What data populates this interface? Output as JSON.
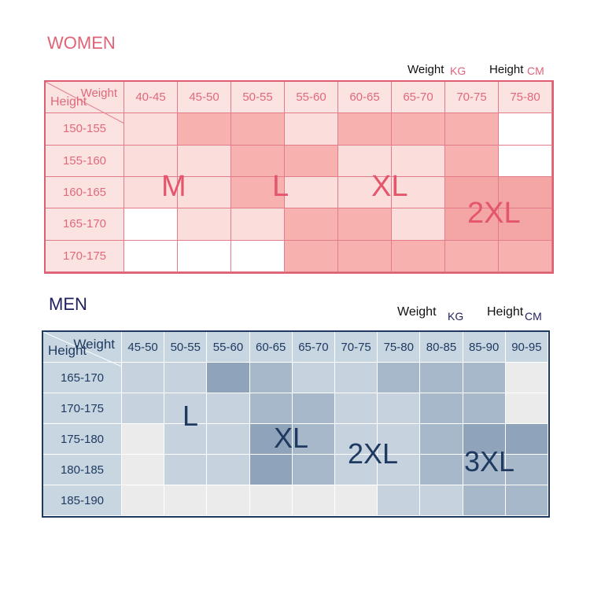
{
  "women": {
    "title": "WOMEN",
    "legend": {
      "weight": "Weight",
      "weight_unit": "KG",
      "height": "Height",
      "height_unit": "CM"
    },
    "corner": {
      "weight": "Weight",
      "height": "Height"
    },
    "weights": [
      "40-45",
      "45-50",
      "50-55",
      "55-60",
      "60-65",
      "65-70",
      "70-75",
      "75-80"
    ],
    "heights": [
      "150-155",
      "155-160",
      "160-165",
      "165-170",
      "170-175"
    ],
    "shades": [
      [
        1,
        2,
        2,
        1,
        2,
        2,
        2,
        0
      ],
      [
        1,
        1,
        2,
        2,
        1,
        1,
        2,
        0
      ],
      [
        1,
        1,
        2,
        1,
        1,
        1,
        3,
        3
      ],
      [
        0,
        1,
        1,
        2,
        2,
        1,
        3,
        3
      ],
      [
        0,
        0,
        0,
        2,
        2,
        2,
        2,
        2
      ]
    ],
    "sizes": [
      "M",
      "L",
      "XL",
      "2XL"
    ],
    "colors": {
      "accent": "#e06478",
      "border": "#dd5f71",
      "light": "#fbe3e2",
      "medium": "#f7b2b0",
      "dark": "#f3a6a4"
    }
  },
  "men": {
    "title": "MEN",
    "legend": {
      "weight": "Weight",
      "weight_unit": "KG",
      "height": "Height",
      "height_unit": "CM"
    },
    "corner": {
      "weight": "Weight",
      "height": "Height"
    },
    "weights": [
      "45-50",
      "50-55",
      "55-60",
      "60-65",
      "65-70",
      "70-75",
      "75-80",
      "80-85",
      "85-90",
      "90-95"
    ],
    "heights": [
      "165-170",
      "170-175",
      "175-180",
      "180-185",
      "185-190"
    ],
    "shades": [
      [
        1,
        1,
        3,
        2,
        1,
        1,
        2,
        2,
        2,
        0
      ],
      [
        1,
        1,
        1,
        2,
        2,
        1,
        1,
        2,
        2,
        0
      ],
      [
        0,
        1,
        1,
        3,
        2,
        1,
        1,
        2,
        3,
        3
      ],
      [
        0,
        1,
        1,
        3,
        2,
        1,
        1,
        2,
        2,
        2
      ],
      [
        0,
        0,
        0,
        0,
        0,
        0,
        1,
        1,
        2,
        2
      ]
    ],
    "sizes": [
      "L",
      "XL",
      "2XL",
      "3XL"
    ],
    "colors": {
      "accent": "#1f1f5e",
      "border": "#1f3a60",
      "light": "#c8d6e2",
      "medium": "#a6b8ca",
      "dark": "#8fa4ba",
      "empty": "#ebebeb"
    }
  }
}
